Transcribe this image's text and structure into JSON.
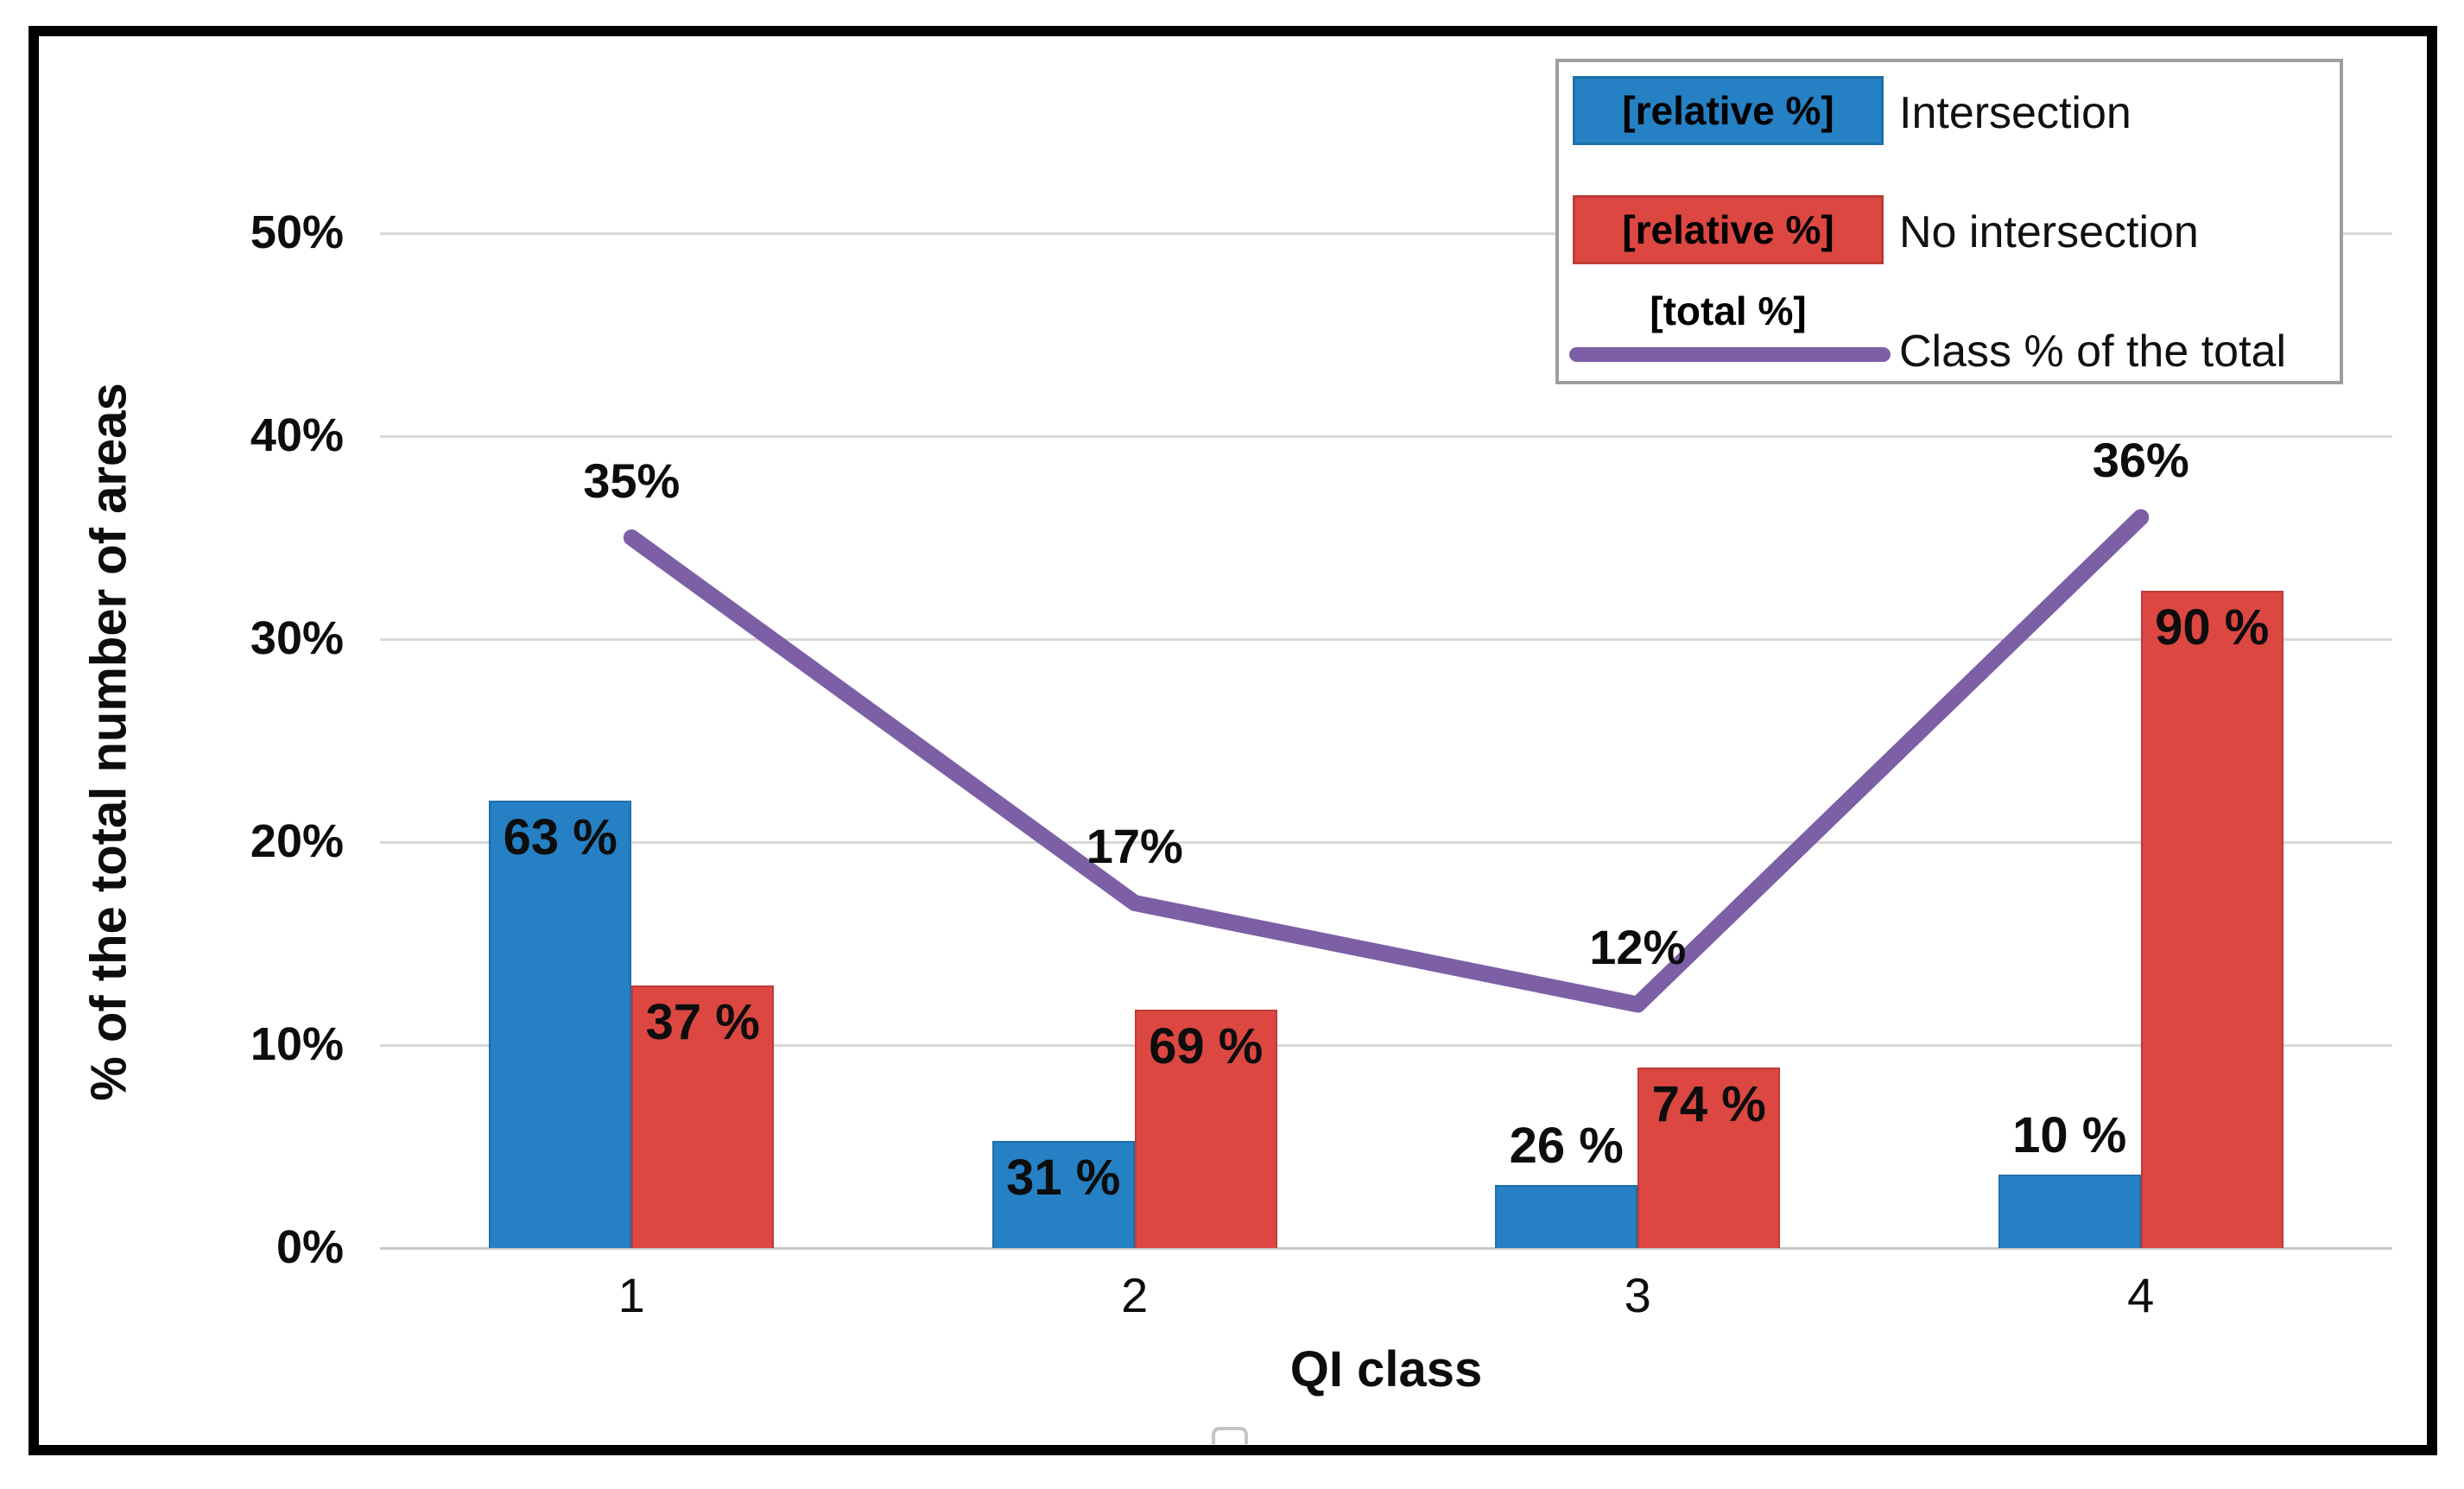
{
  "chart_data": {
    "type": "combo-bar-line",
    "categories": [
      "1",
      "2",
      "3",
      "4"
    ],
    "x_axis": {
      "title": "QI class"
    },
    "y_axis": {
      "title": "% of the total number of areas",
      "ticks": [
        "0%",
        "10%",
        "20%",
        "30%",
        "40%",
        "50%"
      ],
      "min": 0,
      "max": 50,
      "tick_step": 10
    },
    "grid": true,
    "legend_position": "top-right",
    "series": [
      {
        "id": "intersection",
        "name": "Intersection",
        "type": "bar",
        "swatch_text": "[relative %]",
        "color": "#2580C4",
        "border_color": "#1D6FA8",
        "values_pct_of_total_areas": [
          22.05,
          5.27,
          3.12,
          3.6
        ],
        "labels": [
          "63 %",
          "31 %",
          "26 %",
          "10 %"
        ],
        "label_placement": [
          "inside",
          "inside",
          "above",
          "above"
        ]
      },
      {
        "id": "no-intersection",
        "name": "No intersection",
        "type": "bar",
        "swatch_text": "[relative %]",
        "color": "#DC4742",
        "border_color": "#BE3B36",
        "values_pct_of_total_areas": [
          12.95,
          11.73,
          8.88,
          32.4
        ],
        "labels": [
          "37 %",
          "69 %",
          "74 %",
          "90 %"
        ],
        "label_placement": [
          "inside",
          "inside",
          "inside",
          "inside"
        ]
      },
      {
        "id": "class-total",
        "name": "Class % of the total",
        "type": "line",
        "swatch_text": "[total %]",
        "color": "#7D5FA6",
        "values": [
          35,
          17,
          12,
          36
        ],
        "labels": [
          "35%",
          "17%",
          "12%",
          "36%"
        ]
      }
    ],
    "colors": {
      "gridline": "#D8D8D8",
      "axis_line": "#C9C9C9",
      "frame": "#000000",
      "legend_border": "#9E9E9E",
      "text": "#0D0D0D"
    }
  }
}
